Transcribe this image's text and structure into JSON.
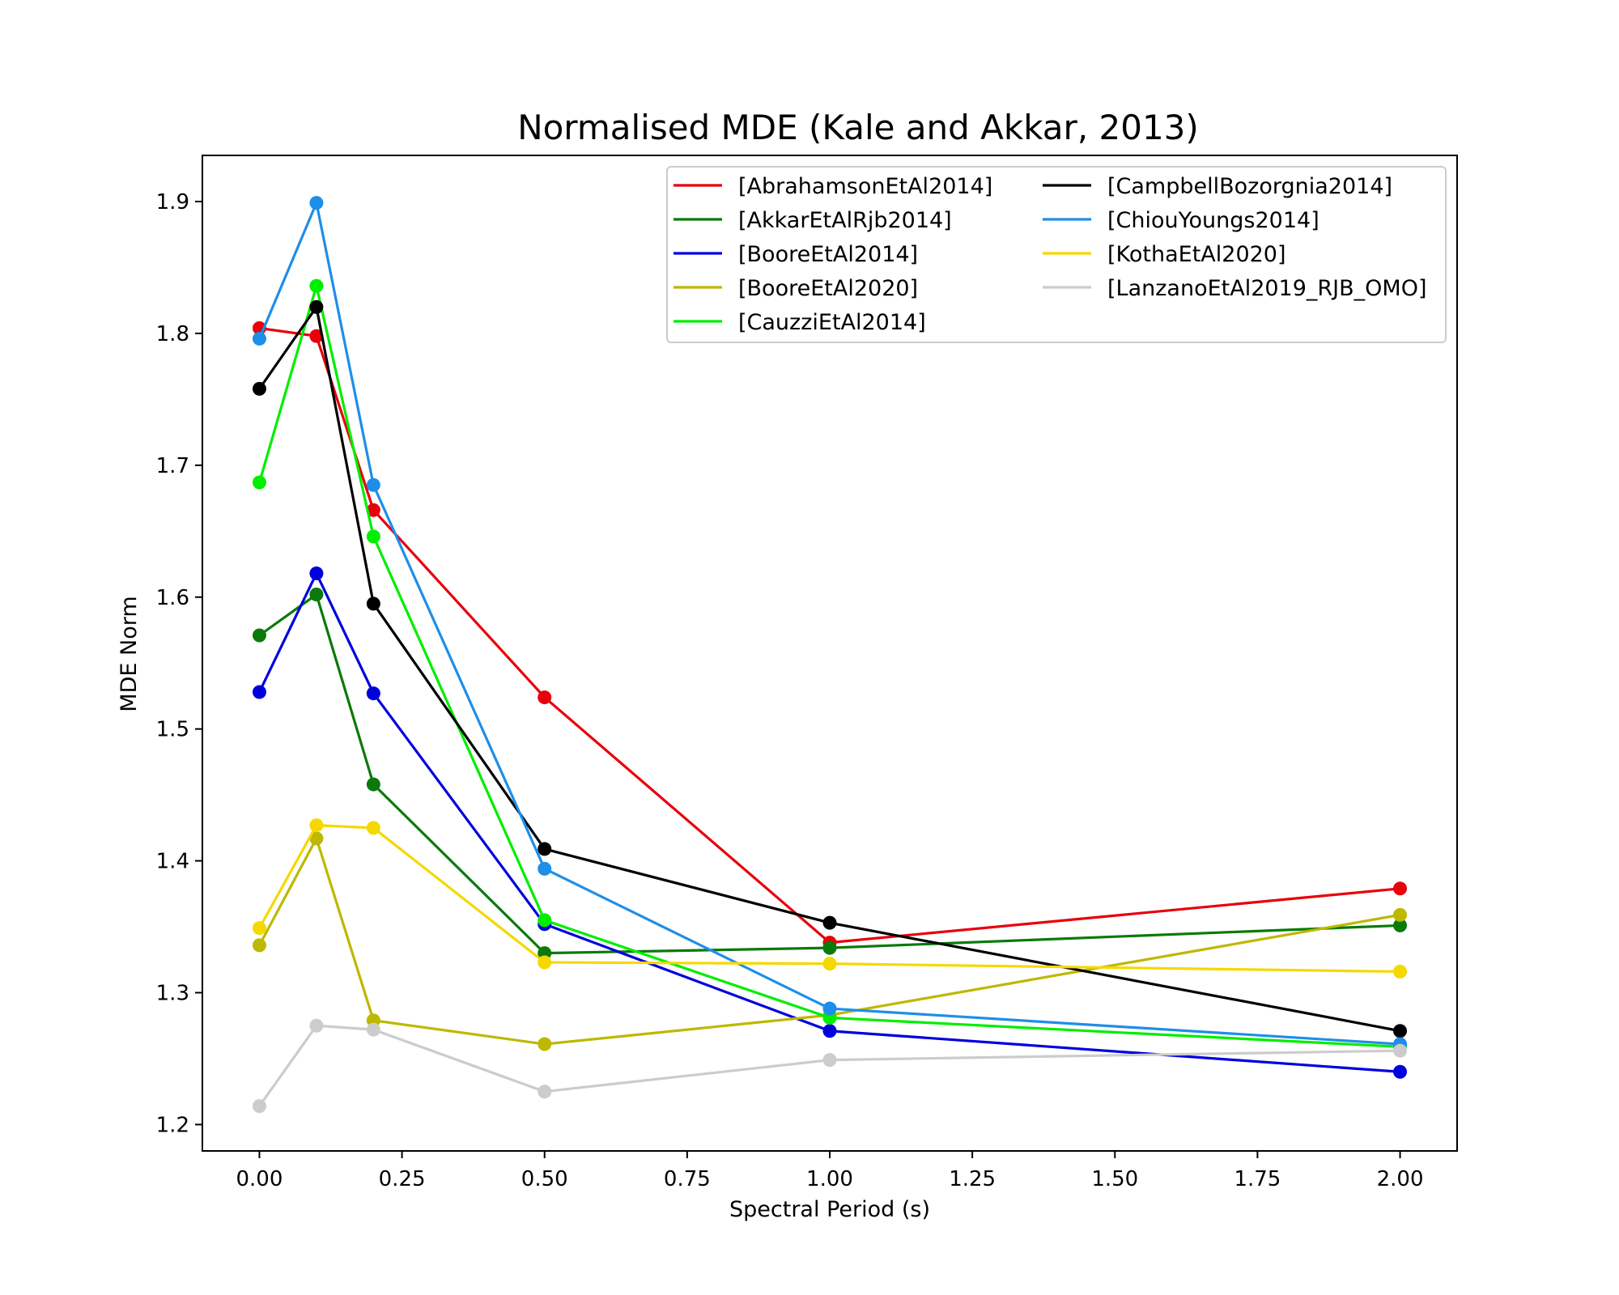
{
  "chart_data": {
    "type": "line",
    "title": "Normalised MDE (Kale and Akkar, 2013)",
    "xlabel": "Spectral Period (s)",
    "ylabel": "MDE Norm",
    "xlim": [
      -0.1,
      2.1
    ],
    "ylim": [
      1.18,
      1.935
    ],
    "xticks": [
      0.0,
      0.25,
      0.5,
      0.75,
      1.0,
      1.25,
      1.5,
      1.75,
      2.0
    ],
    "xtick_labels": [
      "0.00",
      "0.25",
      "0.50",
      "0.75",
      "1.00",
      "1.25",
      "1.50",
      "1.75",
      "2.00"
    ],
    "yticks": [
      1.2,
      1.3,
      1.4,
      1.5,
      1.6,
      1.7,
      1.8,
      1.9
    ],
    "ytick_labels": [
      "1.2",
      "1.3",
      "1.4",
      "1.5",
      "1.6",
      "1.7",
      "1.8",
      "1.9"
    ],
    "grid": false,
    "legend_position": "top-right",
    "legend_columns": 2,
    "x": [
      0.0,
      0.1,
      0.2,
      0.5,
      1.0,
      2.0
    ],
    "series": [
      {
        "name": "[AbrahamsonEtAl2014]",
        "color": "#e8000b",
        "values": [
          1.804,
          1.798,
          1.666,
          1.524,
          1.338,
          1.379
        ]
      },
      {
        "name": "[AkkarEtAlRjb2014]",
        "color": "#0a7a0a",
        "values": [
          1.571,
          1.602,
          1.458,
          1.33,
          1.334,
          1.351
        ]
      },
      {
        "name": "[BooreEtAl2014]",
        "color": "#0000dd",
        "values": [
          1.528,
          1.618,
          1.527,
          1.352,
          1.271,
          1.24
        ]
      },
      {
        "name": "[BooreEtAl2020]",
        "color": "#bdb800",
        "values": [
          1.336,
          1.417,
          1.279,
          1.261,
          1.283,
          1.359
        ]
      },
      {
        "name": "[CauzziEtAl2014]",
        "color": "#00ee00",
        "values": [
          1.687,
          1.836,
          1.646,
          1.355,
          1.281,
          1.259
        ]
      },
      {
        "name": "[CampbellBozorgnia2014]",
        "color": "#000000",
        "values": [
          1.758,
          1.82,
          1.595,
          1.409,
          1.353,
          1.271
        ]
      },
      {
        "name": "[ChiouYoungs2014]",
        "color": "#1e8ee8",
        "values": [
          1.796,
          1.899,
          1.685,
          1.394,
          1.288,
          1.261
        ]
      },
      {
        "name": "[KothaEtAl2020]",
        "color": "#f5d800",
        "values": [
          1.349,
          1.427,
          1.425,
          1.323,
          1.322,
          1.316
        ]
      },
      {
        "name": "[LanzanoEtAl2019_RJB_OMO]",
        "color": "#cccccc",
        "values": [
          1.214,
          1.275,
          1.272,
          1.225,
          1.249,
          1.256
        ]
      }
    ]
  }
}
